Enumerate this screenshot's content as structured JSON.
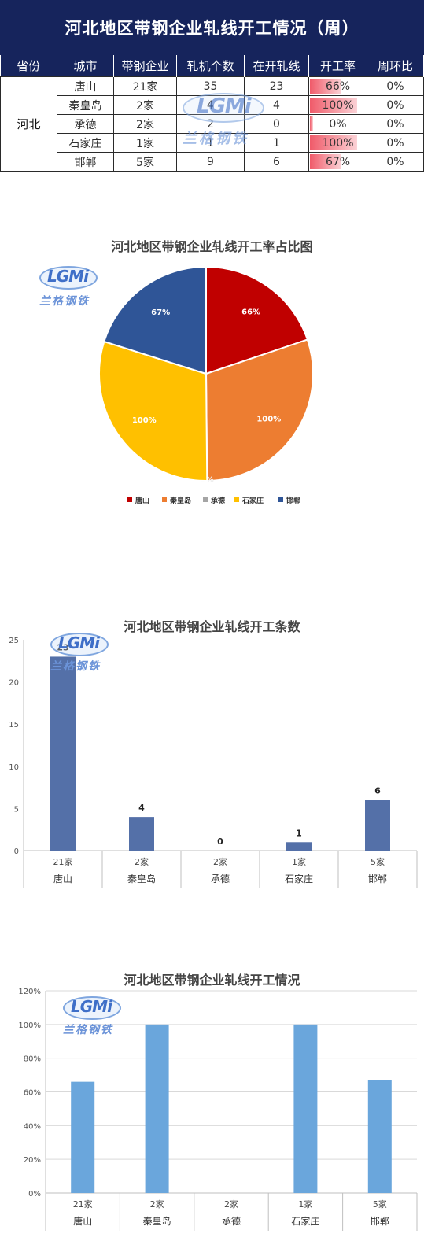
{
  "table": {
    "title": "河北地区带钢企业轧线开工情况（周）",
    "headers": [
      "省份",
      "城市",
      "带钢企业",
      "轧机个数",
      "在开轧线",
      "开工率",
      "周环比"
    ],
    "province": "河北",
    "rows": [
      {
        "city": "唐山",
        "companies": "21家",
        "mills": "35",
        "running": "23",
        "rate": "66%",
        "rate_value": 0.66,
        "wow": "0%"
      },
      {
        "city": "秦皇岛",
        "companies": "2家",
        "mills": "4",
        "running": "4",
        "rate": "100%",
        "rate_value": 1.0,
        "wow": "0%"
      },
      {
        "city": "承德",
        "companies": "2家",
        "mills": "2",
        "running": "0",
        "rate": "0%",
        "rate_value": 0.0,
        "wow": "0%"
      },
      {
        "city": "石家庄",
        "companies": "1家",
        "mills": "1",
        "running": "1",
        "rate": "100%",
        "rate_value": 1.0,
        "wow": "0%"
      },
      {
        "city": "邯郸",
        "companies": "5家",
        "mills": "9",
        "running": "6",
        "rate": "67%",
        "rate_value": 0.67,
        "wow": "0%"
      }
    ]
  },
  "watermark": {
    "letters": "LGMi",
    "sub": "兰格钢铁"
  },
  "chart_data": [
    {
      "type": "pie",
      "title": "河北地区带钢企业轧线开工率占比图",
      "categories": [
        "唐山",
        "秦皇岛",
        "承德",
        "石家庄",
        "邯郸"
      ],
      "values": [
        66,
        100,
        0,
        100,
        67
      ],
      "labels": [
        "66%",
        "100%",
        "0%",
        "100%",
        "67%"
      ],
      "colors": [
        "#c00000",
        "#ed7d31",
        "#a5a5a5",
        "#ffc000",
        "#2f5597"
      ],
      "legend": "bottom"
    },
    {
      "type": "bar",
      "title": "河北地区带钢企业轧线开工条数",
      "categories": [
        "唐山",
        "秦皇岛",
        "承德",
        "石家庄",
        "邯郸"
      ],
      "sub_categories": [
        "21家",
        "2家",
        "2家",
        "1家",
        "5家"
      ],
      "values": [
        23,
        4,
        0,
        1,
        6
      ],
      "ylim": [
        0,
        25
      ],
      "yticks": [
        0,
        5,
        10,
        15,
        20,
        25
      ],
      "color": "#5470a8",
      "data_labels": true
    },
    {
      "type": "bar",
      "title": "河北地区带钢企业轧线开工情况",
      "categories": [
        "唐山",
        "秦皇岛",
        "承德",
        "石家庄",
        "邯郸"
      ],
      "sub_categories": [
        "21家",
        "2家",
        "2家",
        "1家",
        "5家"
      ],
      "values": [
        0.66,
        1.0,
        0.0,
        1.0,
        0.67
      ],
      "ylim": [
        0,
        1.2
      ],
      "yticks": [
        "0%",
        "20%",
        "40%",
        "60%",
        "80%",
        "100%",
        "120%"
      ],
      "color": "#6aa6dc",
      "gridlines": true
    }
  ]
}
